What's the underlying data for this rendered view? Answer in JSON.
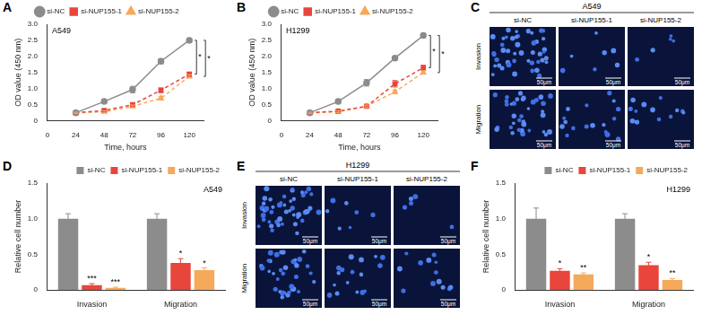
{
  "chart_data": [
    {
      "panel_label": "A",
      "type": "line",
      "cell_line": "A549",
      "x_label": "Time, hours",
      "y_label": "OD value (450 nm)",
      "x": [
        24,
        48,
        72,
        96,
        120
      ],
      "xlim": [
        0,
        132
      ],
      "xticks": [
        0,
        24,
        48,
        72,
        96,
        120
      ],
      "ylim": [
        0,
        3
      ],
      "yticks": [
        0,
        0.5,
        {
          "value": 1,
          "label": "1.0"
        },
        1.5,
        {
          "value": 2,
          "label": "2.0"
        },
        2.5,
        {
          "value": 3,
          "label": "3.0"
        }
      ],
      "grid": false,
      "legend": "top",
      "series": [
        {
          "name": "si-NC",
          "color": "#8c8c8c",
          "marker": "circle",
          "line_style": "solid",
          "values": [
            0.25,
            0.6,
            0.97,
            1.85,
            2.5
          ],
          "errors": [
            0.04,
            0.06,
            0.1,
            0.08,
            0.06
          ]
        },
        {
          "name": "si-NUP155-1",
          "color": "#e8453c",
          "marker": "square",
          "line_style": "dashed",
          "values": [
            0.25,
            0.32,
            0.5,
            0.95,
            1.45
          ],
          "errors": [
            0.03,
            0.04,
            0.05,
            0.07,
            0.06
          ],
          "significance": "*"
        },
        {
          "name": "si-NUP155-2",
          "color": "#f5a95b",
          "marker": "triangle",
          "line_style": "dashed",
          "values": [
            0.25,
            0.28,
            0.45,
            0.7,
            1.38
          ],
          "errors": [
            0.02,
            0.03,
            0.04,
            0.06,
            0.05
          ],
          "significance": "*"
        }
      ]
    },
    {
      "panel_label": "B",
      "type": "line",
      "cell_line": "H1299",
      "x_label": "Time, hours",
      "y_label": "OD value (450 nm)",
      "x": [
        24,
        48,
        72,
        96,
        120
      ],
      "xlim": [
        0,
        132
      ],
      "xticks": [
        0,
        24,
        48,
        72,
        96,
        120
      ],
      "ylim": [
        0,
        3
      ],
      "yticks": [
        0,
        0.5,
        {
          "value": 1,
          "label": "1.0"
        },
        1.5,
        {
          "value": 2,
          "label": "2.0"
        },
        2.5,
        {
          "value": 3,
          "label": "3.0"
        }
      ],
      "grid": false,
      "legend": "top",
      "series": [
        {
          "name": "si-NC",
          "color": "#8c8c8c",
          "marker": "circle",
          "line_style": "solid",
          "values": [
            0.25,
            0.6,
            1.18,
            1.95,
            2.65
          ],
          "errors": [
            0.04,
            0.07,
            0.1,
            0.06,
            0.06
          ]
        },
        {
          "name": "si-NUP155-1",
          "color": "#e8453c",
          "marker": "square",
          "line_style": "dashed",
          "values": [
            0.25,
            0.3,
            0.45,
            1.15,
            1.65
          ],
          "errors": [
            0.03,
            0.04,
            0.05,
            0.1,
            0.07
          ],
          "significance": "*"
        },
        {
          "name": "si-NUP155-2",
          "color": "#f5a95b",
          "marker": "triangle",
          "line_style": "dashed",
          "values": [
            0.25,
            0.28,
            0.45,
            0.9,
            1.5
          ],
          "errors": [
            0.02,
            0.03,
            0.04,
            0.06,
            0.05
          ],
          "significance": "*"
        }
      ]
    },
    {
      "panel_label": "D",
      "type": "bar",
      "cell_line": "A549",
      "y_label": "Relative cell number",
      "categories": [
        "Invasion",
        "Migration"
      ],
      "ylim": [
        0,
        1.5
      ],
      "yticks": [
        0,
        0.5,
        {
          "value": 1,
          "label": "1.0"
        },
        1.5
      ],
      "grid": false,
      "legend": "top",
      "series": [
        {
          "name": "si-NC",
          "color": "#8c8c8c",
          "values": [
            1,
            1
          ],
          "errors": [
            0.07,
            0.07
          ],
          "significance": [
            null,
            null
          ]
        },
        {
          "name": "si-NUP155-1",
          "color": "#e8453c",
          "values": [
            0.07,
            0.38
          ],
          "errors": [
            0.02,
            0.06
          ],
          "significance": [
            "***",
            "*"
          ]
        },
        {
          "name": "si-NUP155-2",
          "color": "#f5a95b",
          "values": [
            0.03,
            0.28
          ],
          "errors": [
            0.01,
            0.03
          ],
          "significance": [
            "***",
            "*"
          ]
        }
      ]
    },
    {
      "panel_label": "F",
      "type": "bar",
      "cell_line": "H1299",
      "y_label": "Relative cell number",
      "categories": [
        "Invasion",
        "Migration"
      ],
      "ylim": [
        0,
        1.5
      ],
      "yticks": [
        0,
        0.5,
        {
          "value": 1,
          "label": "1.0"
        },
        1.5
      ],
      "grid": false,
      "legend": "top",
      "series": [
        {
          "name": "si-NC",
          "color": "#8c8c8c",
          "values": [
            1,
            1
          ],
          "errors": [
            0.15,
            0.07
          ],
          "significance": [
            null,
            null
          ]
        },
        {
          "name": "si-NUP155-1",
          "color": "#e8453c",
          "values": [
            0.27,
            0.35
          ],
          "errors": [
            0.03,
            0.04
          ],
          "significance": [
            "*",
            "*"
          ]
        },
        {
          "name": "si-NUP155-2",
          "color": "#f5a95b",
          "values": [
            0.22,
            0.14
          ],
          "errors": [
            0.02,
            0.02
          ],
          "significance": [
            "**",
            "**"
          ]
        }
      ]
    }
  ],
  "images": [
    {
      "panel_label": "C",
      "title": "A549",
      "columns": [
        "si-NC",
        "si-NUP155-1",
        "si-NUP155-2"
      ],
      "rows": [
        "Invasion",
        "Migration"
      ],
      "scale_bar": "50μm"
    },
    {
      "panel_label": "E",
      "title": "H1299",
      "columns": [
        "si-NC",
        "si-NUP155-1",
        "si-NUP155-2"
      ],
      "rows": [
        "Invasion",
        "Migration"
      ],
      "scale_bar": "50μm"
    }
  ]
}
